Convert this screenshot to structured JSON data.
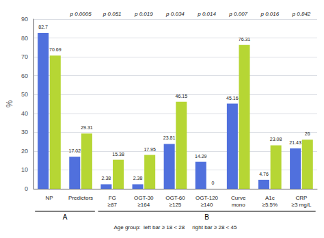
{
  "chart_data": {
    "type": "bar",
    "categories": [
      "NP",
      "Predictors",
      "FG\n≥87",
      "OGT-30\n≥164",
      "OGT-60\n≥125",
      "OGT-120\n≥140",
      "Curve\nmono",
      "A1c\n≥5.5%",
      "CRP\n≥3 mg/L"
    ],
    "series": [
      {
        "values": [
          82.7,
          17.02,
          2.38,
          2.38,
          23.81,
          14.29,
          45.16,
          4.76,
          21.43
        ]
      },
      {
        "values": [
          70.69,
          29.31,
          15.38,
          17.95,
          46.15,
          0.0,
          76.31,
          23.08,
          26.0
        ]
      }
    ],
    "ylabel": "%",
    "ylim": [
      0,
      90
    ],
    "yticks": [
      0,
      10,
      20,
      30,
      40,
      50,
      60,
      70,
      80,
      90
    ],
    "grid": true,
    "data_labels": true,
    "annotations": [
      {
        "category": "Predictors",
        "text": "p 0.0005"
      },
      {
        "category": "FG\n≥87",
        "text": "p 0.051"
      },
      {
        "category": "OGT-30\n≥164",
        "text": "p 0.019"
      },
      {
        "category": "OGT-60\n≥125",
        "text": "p 0.034"
      },
      {
        "category": "OGT-120\n≥140",
        "text": "p 0.014"
      },
      {
        "category": "Curve\nmono",
        "text": "p 0.007"
      },
      {
        "category": "A1c\n≥5.5%",
        "text": "p 0.016"
      },
      {
        "category": "CRP\n≥3 mg/L",
        "text": "p 0.842"
      }
    ],
    "sections": [
      {
        "label": "A",
        "from": "NP",
        "to": "Predictors"
      },
      {
        "label": "B",
        "from": "FG\n≥87",
        "to": "CRP\n≥3 mg/L"
      }
    ],
    "footer": "Age group:  left bar ≥ 18 < 28     right bar ≥ 28 < 45"
  }
}
